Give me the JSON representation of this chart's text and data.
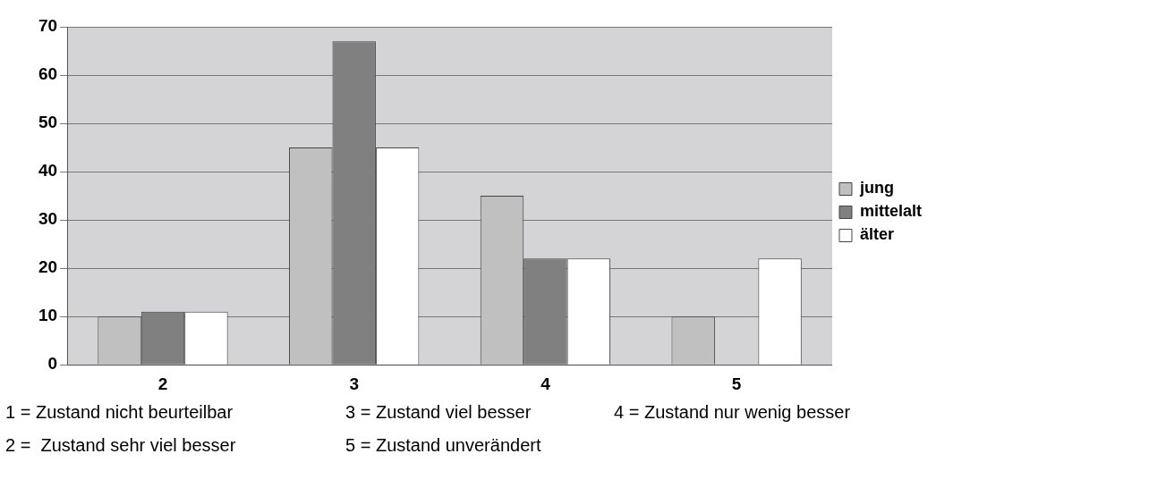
{
  "chart_data": {
    "type": "bar",
    "categories": [
      "2",
      "3",
      "4",
      "5"
    ],
    "series": [
      {
        "name": "jung",
        "color": "#c0c0c0",
        "values": [
          10,
          45,
          35,
          10
        ]
      },
      {
        "name": "mittelalt",
        "color": "#808080",
        "values": [
          11,
          67,
          22,
          null
        ]
      },
      {
        "name": "älter",
        "color": "#ffffff",
        "values": [
          11,
          45,
          22,
          22
        ]
      }
    ],
    "ylim": [
      0,
      70
    ],
    "yticks": [
      0,
      10,
      20,
      30,
      40,
      50,
      60,
      70
    ],
    "grid": "y",
    "legend": "right",
    "annotations": [
      "1 = Zustand nicht beurteilbar",
      "3 = Zustand viel besser",
      "4 = Zustand nur wenig besser",
      "2 =  Zustand sehr viel besser",
      "5 = Zustand unverändert"
    ]
  }
}
